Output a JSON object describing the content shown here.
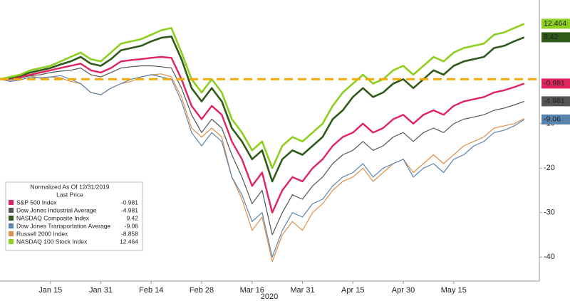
{
  "chart_data": {
    "type": "line",
    "x_label": "2020",
    "legend_title": "Normalized As Of 12/31/2019",
    "legend_value_header": "Last Price",
    "categories": [
      null,
      null,
      null,
      null,
      null,
      "Jan 15",
      null,
      null,
      null,
      null,
      "Jan 31",
      null,
      null,
      null,
      null,
      "Feb 14",
      null,
      null,
      null,
      null,
      "Feb 28",
      null,
      null,
      null,
      null,
      "Mar 16",
      null,
      null,
      null,
      null,
      "Mar 31",
      null,
      null,
      null,
      null,
      "Apr 15",
      null,
      null,
      null,
      null,
      "Apr 30",
      null,
      null,
      null,
      null,
      "May 15",
      null,
      null,
      null,
      null,
      null,
      null,
      null
    ],
    "ylim": [
      -45.4,
      17.8
    ],
    "yticks": [
      -40,
      -30,
      -20,
      -10
    ],
    "hline": {
      "value": 0,
      "color": "#f2a900"
    },
    "legend": "lower-left",
    "series": [
      {
        "name": "S&P 500 Index",
        "color": "#e0245e",
        "tag": true,
        "values": [
          0,
          0.2,
          0.5,
          1,
          1.5,
          2,
          2.5,
          3,
          3.5,
          2,
          1.5,
          2.5,
          4,
          4.3,
          4.5,
          4.8,
          5,
          4.8,
          0,
          -6,
          -9,
          -6,
          -8,
          -14,
          -18,
          -24,
          -21,
          -30,
          -25,
          -22,
          -23,
          -20,
          -18,
          -15,
          -13,
          -12,
          -10,
          -12,
          -11,
          -9,
          -8,
          -10,
          -8,
          -7,
          -8,
          -6,
          -5,
          -4.5,
          -4,
          -3,
          -2.5,
          -1.8,
          -0.981
        ]
      },
      {
        "name": "Dow Jones Industrial Average",
        "color": "#555555",
        "tag": true,
        "values": [
          0,
          0,
          0.3,
          0.8,
          1,
          1.5,
          1.8,
          2,
          2.5,
          1,
          0.5,
          1.5,
          2.5,
          2.8,
          3,
          3,
          2.8,
          2.5,
          -2,
          -8,
          -12,
          -9,
          -11,
          -17,
          -22,
          -28,
          -25,
          -35,
          -30,
          -26,
          -27,
          -24,
          -22,
          -19,
          -17,
          -16,
          -14,
          -16,
          -15,
          -13,
          -12,
          -14,
          -12,
          -11,
          -12,
          -10,
          -9,
          -8.5,
          -8,
          -7,
          -6.5,
          -5.8,
          -4.981
        ]
      },
      {
        "name": "NASDAQ Composite Index",
        "color": "#2f5a1a",
        "tag": true,
        "values": [
          0,
          0.3,
          0.8,
          1.5,
          2,
          2.5,
          3.3,
          4,
          5,
          3.5,
          3,
          4.5,
          6.5,
          7,
          7.5,
          8.5,
          9.3,
          9.6,
          4.5,
          -2,
          -5,
          -2,
          -5,
          -11,
          -14,
          -18,
          -16,
          -23,
          -18,
          -16,
          -17,
          -15,
          -13,
          -9,
          -7,
          -4,
          -2,
          -4,
          -3,
          -1,
          0,
          -2,
          0,
          2,
          1,
          3,
          4,
          4.5,
          5,
          7,
          7.5,
          8.5,
          9.42
        ]
      },
      {
        "name": "Dow Jones Transportation Average",
        "color": "#5a84b0",
        "tag": true,
        "values": [
          0,
          -0.5,
          -0.2,
          0.5,
          0.3,
          0.5,
          0.8,
          0,
          -1,
          -3,
          -3.5,
          -2,
          -1,
          0,
          0.5,
          1,
          0.5,
          0,
          -5,
          -12,
          -15,
          -12,
          -14,
          -22,
          -26,
          -32,
          -30,
          -40,
          -34,
          -30,
          -31,
          -28,
          -27,
          -24,
          -22,
          -21,
          -19,
          -22,
          -20,
          -19,
          -18,
          -22,
          -20,
          -19,
          -21,
          -18,
          -17,
          -15,
          -14,
          -12,
          -11.5,
          -10.5,
          -9.06
        ]
      },
      {
        "name": "Russell 2000 Index",
        "color": "#e0904a",
        "tag": false,
        "values": [
          0,
          -0.3,
          0.3,
          0.8,
          0.2,
          0.5,
          0.3,
          -0.5,
          -1,
          -3,
          -3.5,
          -2,
          -1,
          -0.5,
          0.5,
          1,
          1.2,
          0.5,
          -4,
          -11,
          -13,
          -11,
          -13,
          -22,
          -27,
          -34,
          -31,
          -41,
          -35,
          -32,
          -34,
          -30,
          -28,
          -25,
          -23,
          -22,
          -20,
          -23,
          -21,
          -19,
          -18,
          -21,
          -19,
          -17,
          -19,
          -17,
          -15,
          -14,
          -13,
          -11,
          -10.5,
          -10,
          -8.858
        ]
      },
      {
        "name": "NASDAQ 100 Stock Index",
        "color": "#8ccf1f",
        "tag": true,
        "values": [
          0,
          0.5,
          1,
          2,
          2.5,
          3,
          4,
          5,
          6,
          4.5,
          4,
          6,
          8,
          8.5,
          9,
          10,
          11,
          11.5,
          6,
          0,
          -3,
          0,
          -3,
          -9,
          -12,
          -16,
          -14,
          -20,
          -15,
          -13,
          -14,
          -12,
          -10,
          -6,
          -3,
          -1,
          1,
          -1,
          0,
          2,
          3,
          1,
          3,
          5,
          4,
          6,
          7,
          7.5,
          8,
          10,
          10.5,
          11.5,
          12.464
        ]
      }
    ]
  }
}
